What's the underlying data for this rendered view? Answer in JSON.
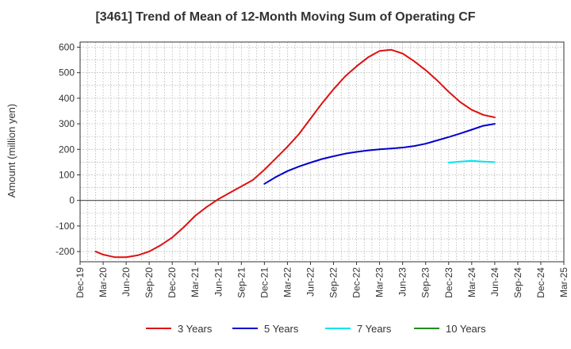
{
  "chart_data": {
    "type": "line",
    "title": "[3461]  Trend of Mean of 12-Month Moving Sum of Operating CF",
    "xlabel": "",
    "ylabel": "Amount (million yen)",
    "ylim": [
      -240,
      620
    ],
    "yticks": [
      -200,
      -100,
      0,
      100,
      200,
      300,
      400,
      500,
      600
    ],
    "x_tick_labels": [
      "Dec-19",
      "Mar-20",
      "Jun-20",
      "Sep-20",
      "Dec-20",
      "Mar-21",
      "Jun-21",
      "Sep-21",
      "Dec-21",
      "Mar-22",
      "Jun-22",
      "Sep-22",
      "Dec-22",
      "Mar-23",
      "Jun-23",
      "Sep-23",
      "Dec-23",
      "Mar-24",
      "Jun-24",
      "Sep-24",
      "Dec-24",
      "Mar-25"
    ],
    "grid": true,
    "legend_position": "bottom",
    "series": [
      {
        "name": "3 Years",
        "color": "#dd1111",
        "points": [
          [
            0.67,
            -200
          ],
          [
            1,
            -212
          ],
          [
            1.5,
            -222
          ],
          [
            2,
            -222
          ],
          [
            2.5,
            -215
          ],
          [
            3,
            -200
          ],
          [
            3.5,
            -175
          ],
          [
            4,
            -145
          ],
          [
            4.5,
            -105
          ],
          [
            5,
            -60
          ],
          [
            5.5,
            -25
          ],
          [
            6,
            5
          ],
          [
            6.5,
            30
          ],
          [
            7,
            55
          ],
          [
            7.5,
            80
          ],
          [
            8,
            120
          ],
          [
            8.5,
            165
          ],
          [
            9,
            210
          ],
          [
            9.5,
            260
          ],
          [
            10,
            320
          ],
          [
            10.5,
            380
          ],
          [
            11,
            435
          ],
          [
            11.5,
            485
          ],
          [
            12,
            525
          ],
          [
            12.5,
            560
          ],
          [
            13,
            585
          ],
          [
            13.5,
            590
          ],
          [
            14,
            575
          ],
          [
            14.5,
            545
          ],
          [
            15,
            510
          ],
          [
            15.5,
            470
          ],
          [
            16,
            425
          ],
          [
            16.5,
            385
          ],
          [
            17,
            355
          ],
          [
            17.5,
            335
          ],
          [
            18,
            325
          ]
        ]
      },
      {
        "name": "5 Years",
        "color": "#0000cc",
        "points": [
          [
            8,
            65
          ],
          [
            8.5,
            92
          ],
          [
            9,
            115
          ],
          [
            9.5,
            133
          ],
          [
            10,
            148
          ],
          [
            10.5,
            162
          ],
          [
            11,
            173
          ],
          [
            11.5,
            183
          ],
          [
            12,
            190
          ],
          [
            12.5,
            196
          ],
          [
            13,
            200
          ],
          [
            13.5,
            203
          ],
          [
            14,
            207
          ],
          [
            14.5,
            213
          ],
          [
            15,
            222
          ],
          [
            15.5,
            235
          ],
          [
            16,
            248
          ],
          [
            16.5,
            262
          ],
          [
            17,
            277
          ],
          [
            17.5,
            292
          ],
          [
            18,
            300
          ]
        ]
      },
      {
        "name": "7 Years",
        "color": "#00e5ee",
        "points": [
          [
            16,
            148
          ],
          [
            16.5,
            152
          ],
          [
            17,
            155
          ],
          [
            17.5,
            152
          ],
          [
            18,
            150
          ]
        ]
      },
      {
        "name": "10 Years",
        "color": "#228b22",
        "points": []
      }
    ]
  }
}
